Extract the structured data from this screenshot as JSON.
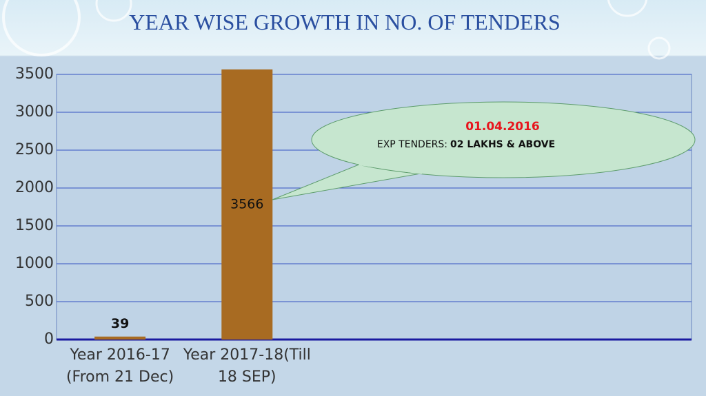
{
  "chart_data": {
    "type": "bar",
    "title": "YEAR WISE GROWTH IN NO. OF TENDERS",
    "categories": [
      "Year 2016-17 (From 21 Dec)",
      "Year 2017-18(Till 18 SEP)"
    ],
    "values": [
      39,
      3566
    ],
    "color": "#a86b22",
    "ylim": [
      0,
      3500
    ],
    "yticks": [
      0,
      500,
      1000,
      1500,
      2000,
      2500,
      3000,
      3500
    ],
    "grid": true,
    "annotation": {
      "date": "01.04.2016",
      "label": "EXP TENDERS:",
      "value": "02 LAKHS & ABOVE"
    }
  }
}
